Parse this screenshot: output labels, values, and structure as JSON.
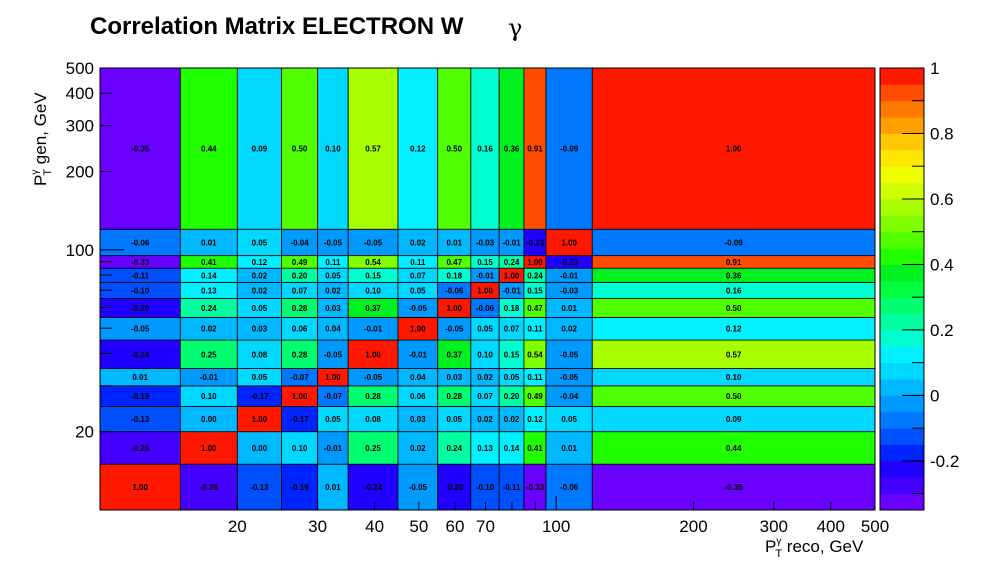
{
  "chart_data": {
    "type": "heatmap",
    "title": "Correlation Matrix ELECTRON W",
    "title_symbol": "γ",
    "xlabel": {
      "main": "P",
      "sup": "γ",
      "sub": "T",
      "rest": " reco, GeV"
    },
    "ylabel": {
      "main": "P",
      "sup": "γ",
      "sub": "T",
      "rest": " gen, GeV"
    },
    "x_scale": "log",
    "y_scale": "log",
    "x_bin_edges": [
      10,
      15,
      20,
      25,
      30,
      35,
      45,
      55,
      65,
      75,
      85,
      95,
      120,
      500
    ],
    "y_bin_edges": [
      10,
      15,
      20,
      25,
      30,
      35,
      45,
      55,
      65,
      75,
      85,
      95,
      120,
      500
    ],
    "x_ticks": [
      20,
      30,
      40,
      50,
      60,
      70,
      100,
      200,
      300,
      400,
      500
    ],
    "x_tick_labels": [
      "20",
      "30",
      "40",
      "50",
      "60",
      "70",
      "100",
      "200",
      "300",
      "400",
      "500"
    ],
    "y_ticks": [
      20,
      100,
      200,
      300,
      400,
      500
    ],
    "y_tick_labels": [
      "20",
      "100",
      "200",
      "300",
      "400",
      "500"
    ],
    "z_range": [
      -0.35,
      1.0
    ],
    "colorbar_ticks": [
      -0.2,
      0,
      0.2,
      0.4,
      0.6,
      0.8,
      1
    ],
    "colorbar_tick_labels": [
      "-0.2",
      "0",
      "0.2",
      "0.4",
      "0.6",
      "0.8",
      "1"
    ],
    "grid": false,
    "values": [
      [
        "1.00",
        "-0.26",
        "-0.13",
        "-0.19",
        "0.01",
        "-0.24",
        "-0.05",
        "-0.20",
        "-0.10",
        "-0.11",
        "-0.33",
        "-0.06",
        "-0.35"
      ],
      [
        "-0.26",
        "1.00",
        "0.00",
        "0.10",
        "-0.01",
        "0.25",
        "0.02",
        "0.24",
        "0.13",
        "0.14",
        "0.41",
        "0.01",
        "0.44"
      ],
      [
        "-0.13",
        "0.00",
        "1.00",
        "-0.17",
        "0.05",
        "0.08",
        "0.03",
        "0.05",
        "0.02",
        "0.02",
        "0.12",
        "0.05",
        "0.09"
      ],
      [
        "-0.19",
        "0.10",
        "-0.17",
        "1.00",
        "-0.07",
        "0.28",
        "0.06",
        "0.28",
        "0.07",
        "0.20",
        "0.49",
        "-0.04",
        "0.50"
      ],
      [
        "0.01",
        "-0.01",
        "0.05",
        "-0.07",
        "1.00",
        "-0.05",
        "0.04",
        "0.03",
        "0.02",
        "0.05",
        "0.11",
        "-0.05",
        "0.10"
      ],
      [
        "-0.24",
        "0.25",
        "0.08",
        "0.28",
        "-0.05",
        "1.00",
        "-0.01",
        "0.37",
        "0.10",
        "0.15",
        "0.54",
        "-0.05",
        "0.57"
      ],
      [
        "-0.05",
        "0.02",
        "0.03",
        "0.06",
        "0.04",
        "-0.01",
        "1.00",
        "-0.05",
        "0.05",
        "0.07",
        "0.11",
        "0.02",
        "0.12"
      ],
      [
        "-0.20",
        "0.24",
        "0.05",
        "0.28",
        "0.03",
        "0.37",
        "-0.05",
        "1.00",
        "-0.06",
        "0.18",
        "0.47",
        "0.01",
        "0.50"
      ],
      [
        "-0.10",
        "0.13",
        "0.02",
        "0.07",
        "0.02",
        "0.10",
        "0.05",
        "-0.06",
        "1.00",
        "-0.01",
        "0.15",
        "-0.03",
        "0.16"
      ],
      [
        "-0.11",
        "0.14",
        "0.02",
        "0.20",
        "0.05",
        "0.15",
        "0.07",
        "0.18",
        "-0.01",
        "1.00",
        "0.24",
        "-0.01",
        "0.36"
      ],
      [
        "-0.33",
        "0.41",
        "0.12",
        "0.49",
        "0.11",
        "0.54",
        "0.11",
        "0.47",
        "0.15",
        "0.24",
        "1.00",
        "-0.23",
        "0.91"
      ],
      [
        "-0.06",
        "0.01",
        "0.05",
        "-0.04",
        "-0.05",
        "-0.05",
        "0.02",
        "0.01",
        "-0.03",
        "-0.01",
        "-0.23",
        "1.00",
        "-0.09"
      ],
      [
        "-0.35",
        "0.44",
        "0.09",
        "0.50",
        "0.10",
        "0.57",
        "0.12",
        "0.50",
        "0.16",
        "0.36",
        "0.91",
        "-0.09",
        "1.00"
      ]
    ],
    "palette": [
      "#6a00ff",
      "#4400ff",
      "#2000ff",
      "#0024ff",
      "#0050ff",
      "#0078ff",
      "#009aff",
      "#00b8ff",
      "#00d8ff",
      "#00f0ff",
      "#00ffd0",
      "#00ffa0",
      "#00ff70",
      "#00ff40",
      "#00f020",
      "#20ff00",
      "#50ff00",
      "#80ff00",
      "#a8ff00",
      "#d0ff00",
      "#f0ff00",
      "#ffe800",
      "#ffc800",
      "#ffa000",
      "#ff7800",
      "#ff4c00",
      "#ff1800"
    ]
  }
}
